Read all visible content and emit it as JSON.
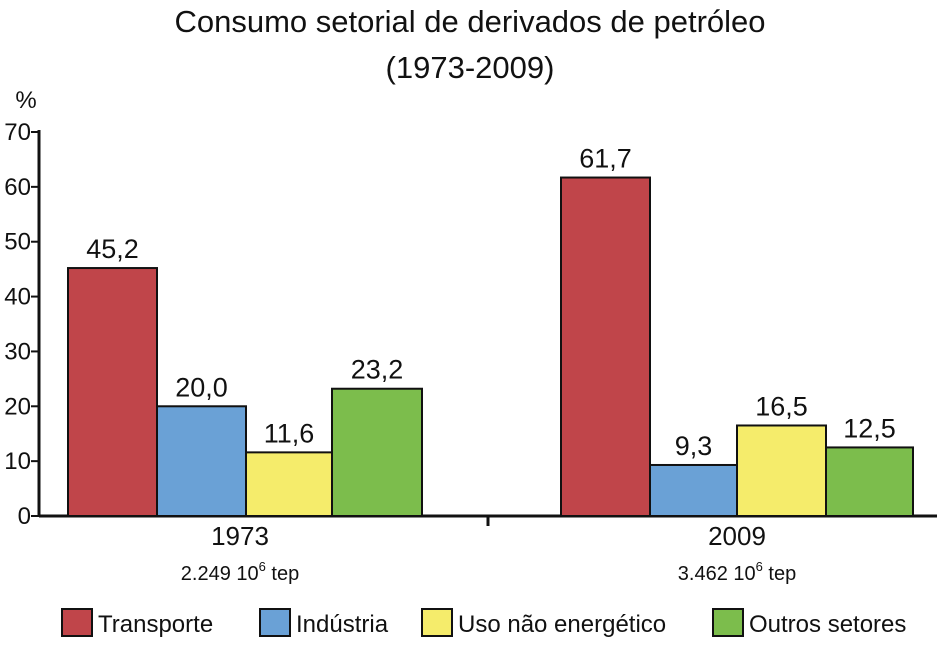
{
  "chart_data": {
    "type": "bar",
    "title": "Consumo setorial de derivados de petróleo",
    "subtitle": "(1973-2009)",
    "ylabel": "%",
    "xlabel": "",
    "ylim": [
      0,
      70
    ],
    "yticks": [
      0,
      10,
      20,
      30,
      40,
      50,
      60,
      70
    ],
    "ytick_labels": [
      "0",
      "10",
      "20",
      "30",
      "40",
      "50",
      "60",
      "70"
    ],
    "grid": false,
    "legend_position": "bottom",
    "categories": [
      "1973",
      "2009"
    ],
    "category_notes": [
      {
        "base": "2.249 10",
        "sup": "6",
        "unit": " tep"
      },
      {
        "base": "3.462 10",
        "sup": "6",
        "unit": " tep"
      }
    ],
    "series": [
      {
        "name": "Transporte",
        "color": "#c0454a",
        "values": [
          45.2,
          61.7
        ],
        "labels": [
          "45,2",
          "61,7"
        ]
      },
      {
        "name": "Indústria",
        "color": "#6aa1d6",
        "values": [
          20.0,
          9.3
        ],
        "labels": [
          "20,0",
          "9,3"
        ]
      },
      {
        "name": "Uso não energético",
        "color": "#f5ec6b",
        "values": [
          11.6,
          16.5
        ],
        "labels": [
          "11,6",
          "16,5"
        ]
      },
      {
        "name": "Outros setores",
        "color": "#7cbd4c",
        "values": [
          23.2,
          12.5
        ],
        "labels": [
          "23,2",
          "12,5"
        ]
      }
    ]
  }
}
